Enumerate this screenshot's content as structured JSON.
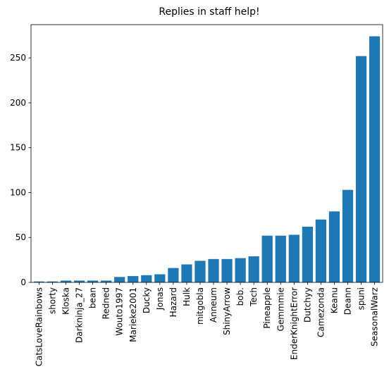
{
  "chart_data": {
    "type": "bar",
    "title": "Replies in staff help!",
    "xlabel": "",
    "ylabel": "",
    "ylim": [
      0,
      287
    ],
    "yticks": [
      0,
      50,
      100,
      150,
      200,
      250
    ],
    "grid": false,
    "bar_color": "#1f77b4",
    "categories": [
      "CatsLoveRainbows",
      "shorty",
      "Kloska",
      "Darkninja_27",
      "bean",
      "Redned",
      "Wouto1997",
      "Marieke2001",
      "Ducky",
      "Jonas",
      "Hazard",
      "Hulk",
      "mitgobla",
      "Anneum",
      "ShinyArrow",
      "bob.",
      "Tech",
      "Pineapple",
      "Gemmmie",
      "EnderKnightError",
      "Dutchyy",
      "Camezonda",
      "Keanu",
      "Deann",
      "spuni",
      "SeasonalWarz"
    ],
    "values": [
      1,
      1,
      2,
      2,
      2,
      2,
      6,
      7,
      8,
      9,
      16,
      20,
      24,
      26,
      26,
      27,
      29,
      52,
      52,
      53,
      62,
      70,
      79,
      103,
      252,
      274
    ]
  }
}
